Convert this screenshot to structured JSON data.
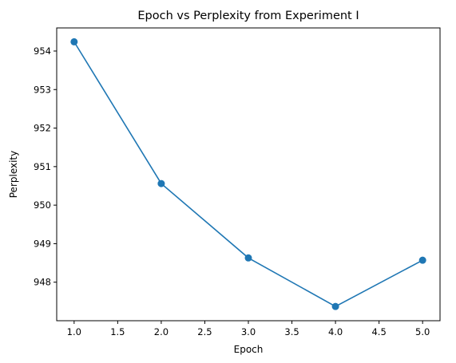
{
  "chart_data": {
    "type": "line",
    "title": "Epoch vs Perplexity from Experiment I",
    "xlabel": "Epoch",
    "ylabel": "Perplexity",
    "x": [
      1,
      2,
      3,
      4,
      5
    ],
    "series": [
      {
        "values": [
          954.24,
          950.56,
          948.63,
          947.37,
          948.57
        ],
        "color": "#1f77b4",
        "marker": "circle"
      }
    ],
    "xlim": [
      0.8,
      5.2
    ],
    "ylim": [
      947.0,
      954.6
    ],
    "xticks": [
      "1.0",
      "1.5",
      "2.0",
      "2.5",
      "3.0",
      "3.5",
      "4.0",
      "4.5",
      "5.0"
    ],
    "yticks": [
      "948",
      "949",
      "950",
      "951",
      "952",
      "953",
      "954"
    ],
    "grid": false,
    "legend": "none"
  }
}
